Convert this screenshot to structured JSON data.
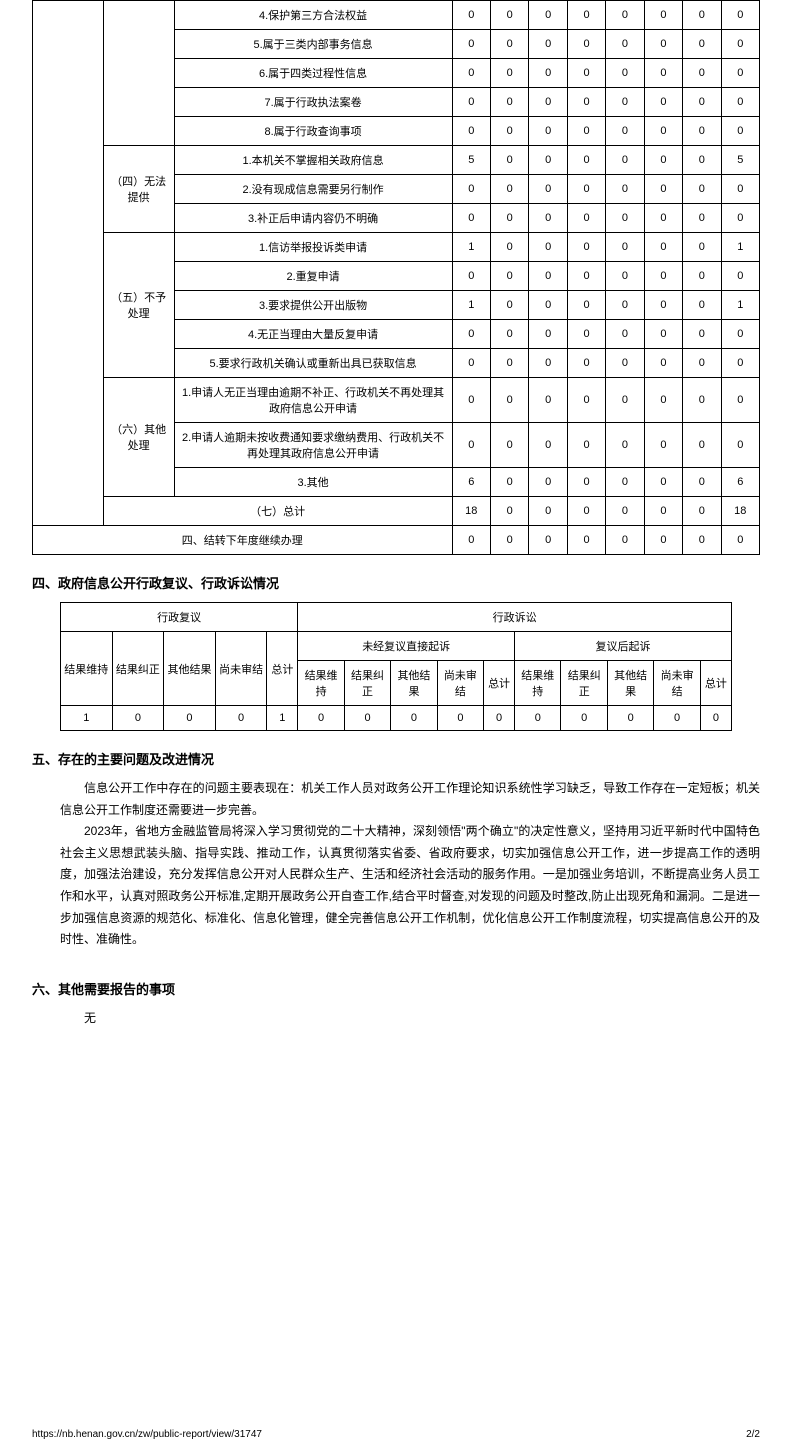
{
  "table1": {
    "col_widths": {
      "c0": 90,
      "c1": 70,
      "c2": 275,
      "c3": 40,
      "c4": 40,
      "c5": 40,
      "c6": 40,
      "c7": 40,
      "c8": 40,
      "c9": 40,
      "c10": 40
    },
    "rows": [
      {
        "group": "",
        "label": "4.保护第三方合法权益",
        "v": [
          "0",
          "0",
          "0",
          "0",
          "0",
          "0",
          "0",
          "0"
        ]
      },
      {
        "group": "",
        "label": "5.属于三类内部事务信息",
        "v": [
          "0",
          "0",
          "0",
          "0",
          "0",
          "0",
          "0",
          "0"
        ]
      },
      {
        "group": "",
        "label": "6.属于四类过程性信息",
        "v": [
          "0",
          "0",
          "0",
          "0",
          "0",
          "0",
          "0",
          "0"
        ]
      },
      {
        "group": "",
        "label": "7.属于行政执法案卷",
        "v": [
          "0",
          "0",
          "0",
          "0",
          "0",
          "0",
          "0",
          "0"
        ]
      },
      {
        "group": "",
        "label": "8.属于行政查询事项",
        "v": [
          "0",
          "0",
          "0",
          "0",
          "0",
          "0",
          "0",
          "0"
        ]
      },
      {
        "group": "（四）无法提供",
        "label": "1.本机关不掌握相关政府信息",
        "v": [
          "5",
          "0",
          "0",
          "0",
          "0",
          "0",
          "0",
          "5"
        ],
        "rowspan": 3
      },
      {
        "group": "",
        "label": "2.没有现成信息需要另行制作",
        "v": [
          "0",
          "0",
          "0",
          "0",
          "0",
          "0",
          "0",
          "0"
        ]
      },
      {
        "group": "",
        "label": "3.补正后申请内容仍不明确",
        "v": [
          "0",
          "0",
          "0",
          "0",
          "0",
          "0",
          "0",
          "0"
        ]
      },
      {
        "group": "（五）不予处理",
        "label": "1.信访举报投诉类申请",
        "v": [
          "1",
          "0",
          "0",
          "0",
          "0",
          "0",
          "0",
          "1"
        ],
        "rowspan": 5
      },
      {
        "group": "",
        "label": "2.重复申请",
        "v": [
          "0",
          "0",
          "0",
          "0",
          "0",
          "0",
          "0",
          "0"
        ]
      },
      {
        "group": "",
        "label": "3.要求提供公开出版物",
        "v": [
          "1",
          "0",
          "0",
          "0",
          "0",
          "0",
          "0",
          "1"
        ]
      },
      {
        "group": "",
        "label": "4.无正当理由大量反复申请",
        "v": [
          "0",
          "0",
          "0",
          "0",
          "0",
          "0",
          "0",
          "0"
        ]
      },
      {
        "group": "",
        "label": "5.要求行政机关确认或重新出具已获取信息",
        "v": [
          "0",
          "0",
          "0",
          "0",
          "0",
          "0",
          "0",
          "0"
        ]
      },
      {
        "group": "（六）其他处理",
        "label": "1.申请人无正当理由逾期不补正、行政机关不再处理其政府信息公开申请",
        "v": [
          "0",
          "0",
          "0",
          "0",
          "0",
          "0",
          "0",
          "0"
        ],
        "rowspan": 3
      },
      {
        "group": "",
        "label": "2.申请人逾期未按收费通知要求缴纳费用、行政机关不再处理其政府信息公开申请",
        "v": [
          "0",
          "0",
          "0",
          "0",
          "0",
          "0",
          "0",
          "0"
        ]
      },
      {
        "group": "",
        "label": "3.其他",
        "v": [
          "6",
          "0",
          "0",
          "0",
          "0",
          "0",
          "0",
          "6"
        ]
      }
    ],
    "total_row": {
      "label": "（七）总计",
      "v": [
        "18",
        "0",
        "0",
        "0",
        "0",
        "0",
        "0",
        "18"
      ]
    },
    "carryover_row": {
      "label": "四、结转下年度继续办理",
      "v": [
        "0",
        "0",
        "0",
        "0",
        "0",
        "0",
        "0",
        "0"
      ]
    }
  },
  "section4": {
    "title": "四、政府信息公开行政复议、行政诉讼情况",
    "headers": {
      "h1": "行政复议",
      "h2": "行政诉讼",
      "h3": "未经复议直接起诉",
      "h4": "复议后起诉",
      "c1": "结果维持",
      "c2": "结果纠正",
      "c3": "其他结果",
      "c4": "尚未审结",
      "c5": "总计",
      "c6": "结果维持",
      "c7": "结果纠正",
      "c8": "其他结果",
      "c9": "尚未审结",
      "c10": "总计",
      "c11": "结果维持",
      "c12": "结果纠正",
      "c13": "其他结果",
      "c14": "尚未审结",
      "c15": "总计"
    },
    "values": [
      "1",
      "0",
      "0",
      "0",
      "1",
      "0",
      "0",
      "0",
      "0",
      "0",
      "0",
      "0",
      "0",
      "0",
      "0"
    ]
  },
  "section5": {
    "title": "五、存在的主要问题及改进情况",
    "p1": "信息公开工作中存在的问题主要表现在：机关工作人员对政务公开工作理论知识系统性学习缺乏，导致工作存在一定短板；机关信息公开工作制度还需要进一步完善。",
    "p2": "2023年，省地方金融监管局将深入学习贯彻党的二十大精神，深刻领悟\"两个确立\"的决定性意义，坚持用习近平新时代中国特色社会主义思想武装头脑、指导实践、推动工作，认真贯彻落实省委、省政府要求，切实加强信息公开工作，进一步提高工作的透明度，加强法治建设，充分发挥信息公开对人民群众生产、生活和经济社会活动的服务作用。一是加强业务培训，不断提高业务人员工作和水平，认真对照政务公开标准,定期开展政务公开自查工作,结合平时督查,对发现的问题及时整改,防止出现死角和漏洞。二是进一步加强信息资源的规范化、标准化、信息化管理，健全完善信息公开工作机制，优化信息公开工作制度流程，切实提高信息公开的及时性、准确性。"
  },
  "section6": {
    "title": "六、其他需要报告的事项",
    "p1": "无"
  },
  "footer": {
    "url": "https://nb.henan.gov.cn/zw/public-report/view/31747",
    "page": "2/2"
  }
}
